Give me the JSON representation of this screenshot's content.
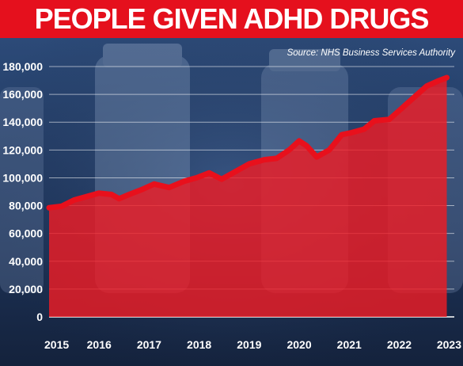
{
  "chart_data": {
    "type": "area",
    "title": "PEOPLE GIVEN ADHD DRUGS",
    "source": "Source: NHS Business Services Authority",
    "xlabel": "",
    "ylabel": "",
    "ylim": [
      0,
      180000
    ],
    "xlim": [
      2015,
      2023.1
    ],
    "yticks": [
      0,
      20000,
      40000,
      60000,
      80000,
      100000,
      120000,
      140000,
      160000,
      180000
    ],
    "ytick_labels": [
      "0",
      "20,000",
      "40,000",
      "60,000",
      "80,000",
      "100,000",
      "120,000",
      "140,000",
      "160,000",
      "180,000"
    ],
    "xticks": [
      2015,
      2016,
      2017,
      2018,
      2019,
      2020,
      2021,
      2022,
      2023
    ],
    "xtick_labels": [
      "2015",
      "2016",
      "2017",
      "2018",
      "2019",
      "2020",
      "2021",
      "2022",
      "2023"
    ],
    "grid": true,
    "series": [
      {
        "values": [
          [
            2015.0,
            78500
          ],
          [
            2015.25,
            79500
          ],
          [
            2015.5,
            84000
          ],
          [
            2015.75,
            86500
          ],
          [
            2016.0,
            89000
          ],
          [
            2016.25,
            88000
          ],
          [
            2016.4,
            85000
          ],
          [
            2016.6,
            88000
          ],
          [
            2016.85,
            91500
          ],
          [
            2017.1,
            95500
          ],
          [
            2017.4,
            93000
          ],
          [
            2017.7,
            97500
          ],
          [
            2017.95,
            100000
          ],
          [
            2018.2,
            103500
          ],
          [
            2018.45,
            99000
          ],
          [
            2018.7,
            104000
          ],
          [
            2019.0,
            110000
          ],
          [
            2019.3,
            113000
          ],
          [
            2019.55,
            114000
          ],
          [
            2019.8,
            120000
          ],
          [
            2020.0,
            126500
          ],
          [
            2020.15,
            123000
          ],
          [
            2020.35,
            115000
          ],
          [
            2020.6,
            120000
          ],
          [
            2020.85,
            131000
          ],
          [
            2021.05,
            132500
          ],
          [
            2021.3,
            135000
          ],
          [
            2021.5,
            141000
          ],
          [
            2021.8,
            142000
          ],
          [
            2022.05,
            150000
          ],
          [
            2022.3,
            158000
          ],
          [
            2022.55,
            166000
          ],
          [
            2022.8,
            170000
          ],
          [
            2022.95,
            172000
          ]
        ]
      }
    ],
    "colors": {
      "title_banner": "#e5101d",
      "area_fill": "#ee1c25",
      "line": "#e8101c",
      "background": "#1b2c4a",
      "text": "#ffffff",
      "grid": "#ffffff"
    }
  }
}
